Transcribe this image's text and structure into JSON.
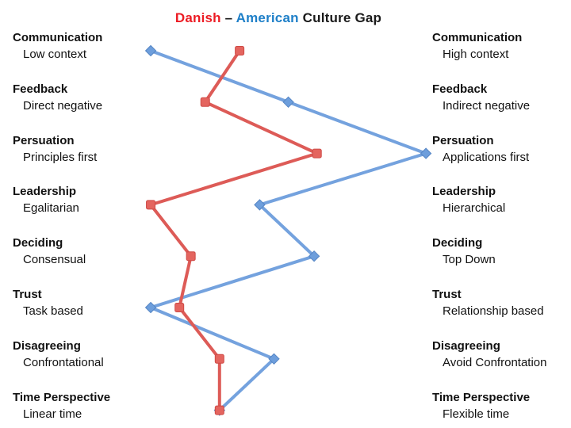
{
  "title": {
    "danish_label": "Danish",
    "separator": " – ",
    "american_label": "American",
    "rest_label": " Culture Gap",
    "danish_color": "#ec1c24",
    "american_color": "#1e7fc8",
    "rest_color": "#1a1a1a"
  },
  "chart_data": {
    "type": "line",
    "title": "Danish – American Culture Gap",
    "orientation": "vertical-category-axis",
    "xlim": [
      0,
      100
    ],
    "x_meaning": "position between left-pole (0) and right-pole (100) of each culture dimension",
    "grid": false,
    "legend_position": "encoded-in-title-colors",
    "categories": [
      {
        "dimension": "Communication",
        "left_label": "Low context",
        "right_label": "High context"
      },
      {
        "dimension": "Feedback",
        "left_label": "Direct negative",
        "right_label": "Indirect negative"
      },
      {
        "dimension": "Persuation",
        "left_label": "Principles first",
        "right_label": "Applications first"
      },
      {
        "dimension": "Leadership",
        "left_label": "Egalitarian",
        "right_label": "Hierarchical"
      },
      {
        "dimension": "Deciding",
        "left_label": "Consensual",
        "right_label": "Top Down"
      },
      {
        "dimension": "Trust",
        "left_label": "Task based",
        "right_label": "Relationship based"
      },
      {
        "dimension": "Disagreeing",
        "left_label": "Confrontational",
        "right_label": "Avoid Confrontation"
      },
      {
        "dimension": "Time Perspective",
        "left_label": "Linear time",
        "right_label": "Flexible time"
      }
    ],
    "series": [
      {
        "name": "American",
        "marker": "diamond",
        "line_color": "#74a2de",
        "fill_color": "#6d9edc",
        "stroke_color": "#5585c4",
        "values": [
          3,
          51,
          99,
          41,
          60,
          3,
          46,
          27
        ]
      },
      {
        "name": "Danish",
        "marker": "square",
        "line_color": "#dd5b57",
        "fill_color": "#e4655f",
        "stroke_color": "#ce4a46",
        "values": [
          34,
          22,
          61,
          3,
          17,
          13,
          27,
          27
        ]
      }
    ]
  }
}
